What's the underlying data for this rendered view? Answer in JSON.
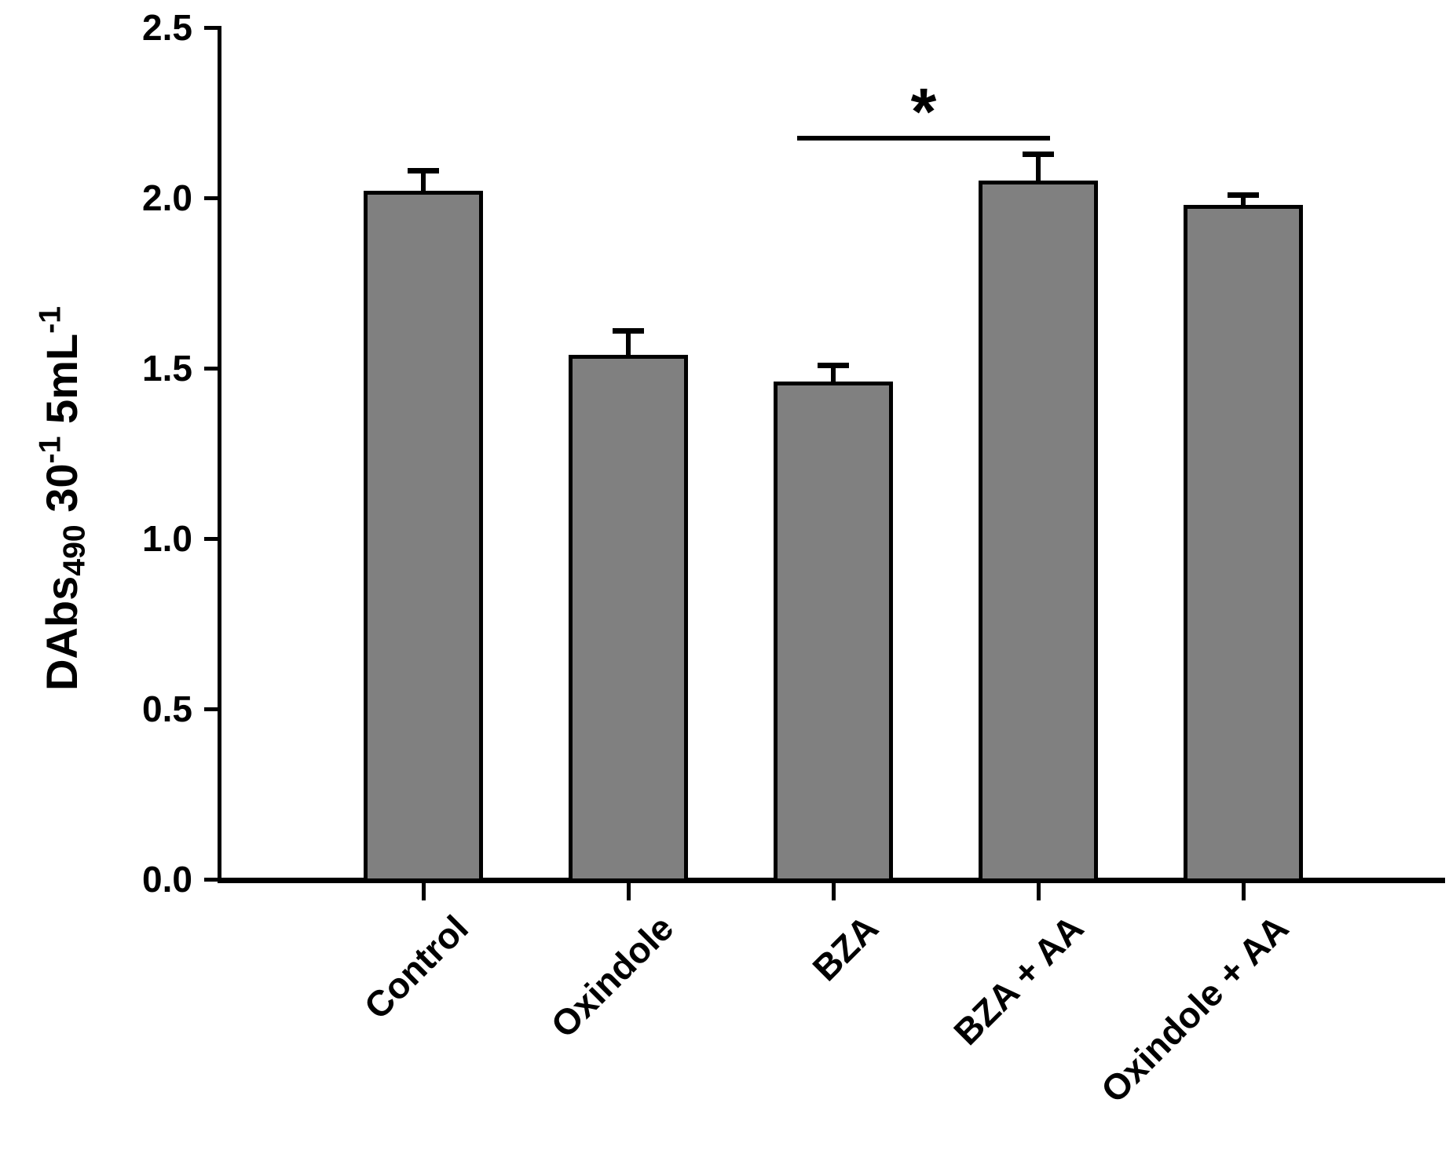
{
  "figure": {
    "background": "#ffffff",
    "bar_fill": "#808080",
    "bar_outline": "#000000",
    "significance_label": "*",
    "ylabel_parts": {
      "main": "DAbs",
      "sub": "490",
      "mid": " 30",
      "sup1": "-1",
      "unit": " 5mL",
      "sup2": "-1"
    }
  },
  "chart_data": {
    "type": "bar",
    "title": "",
    "xlabel": "",
    "ylabel": "DAbs490 30-1 5mL-1",
    "categories": [
      "Control",
      "Oxindole",
      "BZA",
      "BZA + AA",
      "Oxindole + AA"
    ],
    "values": [
      2.02,
      1.54,
      1.46,
      2.05,
      1.98
    ],
    "errors": [
      0.06,
      0.07,
      0.05,
      0.08,
      0.03
    ],
    "error_direction": "upper-only",
    "bar_color": "#808080",
    "bar_edge_color": "#000000",
    "yticks": [
      0.0,
      0.5,
      1.0,
      1.5,
      2.0,
      2.5
    ],
    "ytick_labels": [
      "0.0",
      "0.5",
      "1.0",
      "1.5",
      "2.0",
      "2.5"
    ],
    "ylim": [
      0.0,
      2.5
    ],
    "grid": false,
    "legend": null,
    "annotations": [
      {
        "type": "significance-bracket",
        "label": "*",
        "from_category": "BZA",
        "to_category": "BZA + AA"
      }
    ]
  }
}
